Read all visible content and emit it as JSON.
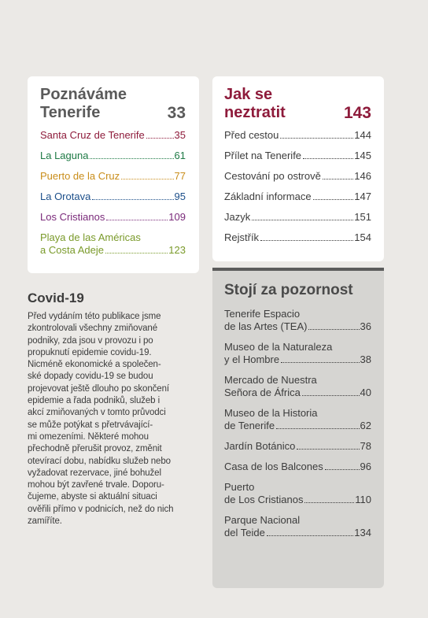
{
  "left_card": {
    "title_line1": "Poznáváme",
    "title_line2": "Tenerife",
    "page": "33",
    "items": [
      {
        "label": "Santa Cruz de Tenerife",
        "page": "35",
        "color": "#8e1b3b"
      },
      {
        "label": "La Laguna",
        "page": "61",
        "color": "#1e7a45"
      },
      {
        "label": "Puerto de la Cruz",
        "page": "77",
        "color": "#c98d1a"
      },
      {
        "label": "La Orotava",
        "page": "95",
        "color": "#1c4f8a"
      },
      {
        "label": "Los Cristianos",
        "page": "109",
        "color": "#7a2a7a"
      },
      {
        "label_line1": "Playa de las Américas",
        "label_line2": "a Costa Adeje",
        "page": "123",
        "color": "#7a9a2a"
      }
    ]
  },
  "right_card": {
    "title_line1": "Jak se",
    "title_line2": "neztratit",
    "page": "143",
    "items": [
      {
        "label": "Před cestou",
        "page": "144"
      },
      {
        "label": "Přílet na Tenerife",
        "page": "145"
      },
      {
        "label": "Cestování po ostrově",
        "page": "146"
      },
      {
        "label": "Základní informace",
        "page": "147"
      },
      {
        "label": "Jazyk",
        "page": "151"
      },
      {
        "label": "Rejstřík",
        "page": "154"
      }
    ]
  },
  "grey_card": {
    "title": "Stojí za pozornost",
    "items": [
      {
        "line1": "Tenerife Espacio",
        "line2": "de las Artes (TEA)",
        "page": "36"
      },
      {
        "line1": "Museo de la Naturaleza",
        "line2": "y el Hombre",
        "page": "38"
      },
      {
        "line1": "Mercado de Nuestra",
        "line2": "Señora de África",
        "page": "40"
      },
      {
        "line1": "Museo de la Historia",
        "line2": "de Tenerife",
        "page": "62"
      },
      {
        "line1": "",
        "line2": "Jardín Botánico",
        "page": "78"
      },
      {
        "line1": "",
        "line2": "Casa de los Balcones",
        "page": "96"
      },
      {
        "line1": "Puerto",
        "line2": "de Los Cristianos",
        "page": "110"
      },
      {
        "line1": "Parque Nacional",
        "line2": "del Teide",
        "page": "134"
      }
    ]
  },
  "covid": {
    "title": "Covid-19",
    "body": "Před vydáním této publikace jsme\nzkontrolovali všechny zmiňované\npodniky, zda jsou v provozu i po\npropuknutí epidemie covidu-19.\nNicméně ekonomické a společen-\nské dopady covidu-19 se budou\nprojevovat ještě dlouho po skončení\nepidemie a řada podniků, služeb i\nakcí zmiňovaných v tomto průvodci\nse může potýkat s přetrvávající-\nmi omezeními. Některé mohou\npřechodně přerušit provoz, změnit\notevírací dobu, nabídku služeb nebo\nvyžadovat rezervace, jiné bohužel\nmohou být zavřené trvale. Doporu-\nčujeme, abyste si aktuální situaci\nověřili přímo v podnicích, než do nich\nzamíříte."
  }
}
